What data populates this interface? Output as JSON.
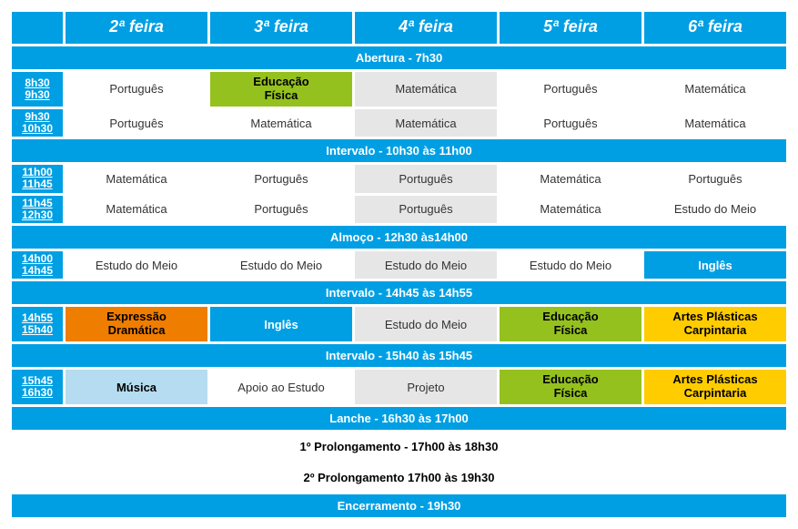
{
  "colors": {
    "primary_blue": "#009fe3",
    "green": "#95c11f",
    "orange": "#ef7d00",
    "yellow": "#ffcc00",
    "lightblue": "#b5dcf0",
    "gray": "#e6e6e6",
    "white": "#ffffff"
  },
  "font": {
    "family": "Century Gothic",
    "header_size_pt": 18,
    "cell_size_pt": 13
  },
  "headers": [
    "2ª feira",
    "3ª feira",
    "4ª feira",
    "5ª feira",
    "6ª feira"
  ],
  "banners": {
    "abertura": "Abertura - 7h30",
    "intervalo1": "Intervalo - 10h30 às 11h00",
    "almoco": "Almoço - 12h30 às14h00",
    "intervalo2": "Intervalo - 14h45 às 14h55",
    "intervalo3": "Intervalo - 15h40 às 15h45",
    "lanche": "Lanche - 16h30 às 17h00",
    "prol1": "1º Prolongamento - 17h00 às 18h30",
    "prol2": "2º Prolongamento 17h00 às 19h30",
    "encerr": "Encerramento - 19h30"
  },
  "rows": [
    {
      "time_a": "8h30",
      "time_b": "9h30",
      "cells": [
        {
          "text": "Português",
          "style": "cell"
        },
        {
          "text": "Educação\nFísica",
          "style": "cell-green",
          "twoline": true
        },
        {
          "text": "Matemática",
          "style": "cell-gray"
        },
        {
          "text": "Português",
          "style": "cell"
        },
        {
          "text": "Matemática",
          "style": "cell"
        }
      ]
    },
    {
      "time_a": "9h30",
      "time_b": "10h30",
      "cells": [
        {
          "text": "Português",
          "style": "cell"
        },
        {
          "text": "Matemática",
          "style": "cell"
        },
        {
          "text": "Matemática",
          "style": "cell-gray"
        },
        {
          "text": "Português",
          "style": "cell"
        },
        {
          "text": "Matemática",
          "style": "cell"
        }
      ]
    },
    {
      "time_a": "11h00",
      "time_b": "11h45",
      "cells": [
        {
          "text": "Matemática",
          "style": "cell"
        },
        {
          "text": "Português",
          "style": "cell"
        },
        {
          "text": "Português",
          "style": "cell-gray"
        },
        {
          "text": "Matemática",
          "style": "cell"
        },
        {
          "text": "Português",
          "style": "cell"
        }
      ]
    },
    {
      "time_a": "11h45",
      "time_b": "12h30",
      "cells": [
        {
          "text": "Matemática",
          "style": "cell"
        },
        {
          "text": "Português",
          "style": "cell"
        },
        {
          "text": "Português",
          "style": "cell-gray"
        },
        {
          "text": "Matemática",
          "style": "cell"
        },
        {
          "text": "Estudo do Meio",
          "style": "cell"
        }
      ]
    },
    {
      "time_a": "14h00",
      "time_b": "14h45",
      "cells": [
        {
          "text": "Estudo do Meio",
          "style": "cell"
        },
        {
          "text": "Estudo do Meio",
          "style": "cell"
        },
        {
          "text": "Estudo do Meio",
          "style": "cell-gray"
        },
        {
          "text": "Estudo do Meio",
          "style": "cell"
        },
        {
          "text": "Inglês",
          "style": "cell-blue"
        }
      ]
    },
    {
      "time_a": "14h55",
      "time_b": "15h40",
      "cells": [
        {
          "text": "Expressão\nDramática",
          "style": "cell-orange",
          "twoline": true
        },
        {
          "text": "Inglês",
          "style": "cell-blue"
        },
        {
          "text": "Estudo do Meio",
          "style": "cell-gray"
        },
        {
          "text": "Educação\nFísica",
          "style": "cell-green",
          "twoline": true
        },
        {
          "text": "Artes Plásticas\nCarpintaria",
          "style": "cell-yellow",
          "twoline": true
        }
      ]
    },
    {
      "time_a": "15h45",
      "time_b": "16h30",
      "cells": [
        {
          "text": "Música",
          "style": "cell-lightblue"
        },
        {
          "text": "Apoio ao Estudo",
          "style": "cell"
        },
        {
          "text": "Projeto",
          "style": "cell-gray"
        },
        {
          "text": "Educação\nFísica",
          "style": "cell-green",
          "twoline": true
        },
        {
          "text": "Artes Plásticas\nCarpintaria",
          "style": "cell-yellow",
          "twoline": true
        }
      ]
    }
  ]
}
